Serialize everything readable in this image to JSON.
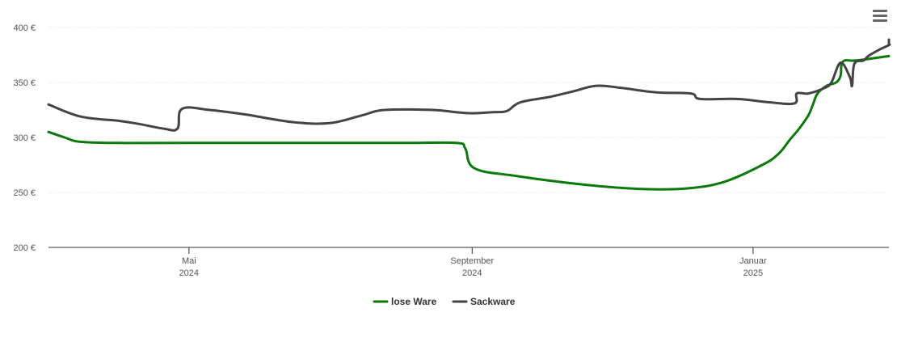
{
  "menu": {
    "icon": "hamburger-menu-icon"
  },
  "chart_data": {
    "type": "line",
    "title": "",
    "xlabel": "",
    "ylabel": "",
    "ylim": [
      200,
      400
    ],
    "y_ticks": [
      {
        "value": 400,
        "label": "400 €"
      },
      {
        "value": 350,
        "label": "350 €"
      },
      {
        "value": 300,
        "label": "300 €"
      },
      {
        "value": 250,
        "label": "250 €"
      },
      {
        "value": 200,
        "label": "200 €"
      }
    ],
    "xlim": [
      "2024-03-01",
      "2025-03-01"
    ],
    "x_ticks": [
      {
        "date": "2024-05-01",
        "label": "Mai",
        "year": "2024"
      },
      {
        "date": "2024-09-01",
        "label": "September",
        "year": "2024"
      },
      {
        "date": "2025-01-01",
        "label": "Januar",
        "year": "2025"
      }
    ],
    "grid": true,
    "legend_position": "bottom-center",
    "series": [
      {
        "name": "lose Ware",
        "color": "#0a7a0a",
        "points": [
          [
            "2024-03-01",
            305
          ],
          [
            "2024-03-08",
            300
          ],
          [
            "2024-03-15",
            296
          ],
          [
            "2024-04-01",
            295
          ],
          [
            "2024-05-01",
            295
          ],
          [
            "2024-06-15",
            295
          ],
          [
            "2024-08-01",
            295
          ],
          [
            "2024-08-25",
            295
          ],
          [
            "2024-08-29",
            290
          ],
          [
            "2024-09-02",
            272
          ],
          [
            "2024-09-20",
            265
          ],
          [
            "2024-10-20",
            257
          ],
          [
            "2024-11-15",
            253
          ],
          [
            "2024-12-05",
            254
          ],
          [
            "2024-12-20",
            260
          ],
          [
            "2025-01-05",
            275
          ],
          [
            "2025-01-12",
            285
          ],
          [
            "2025-01-17",
            298
          ],
          [
            "2025-01-21",
            308
          ],
          [
            "2025-01-25",
            320
          ],
          [
            "2025-01-27",
            330
          ],
          [
            "2025-01-29",
            340
          ],
          [
            "2025-02-02",
            347
          ],
          [
            "2025-02-06",
            350
          ],
          [
            "2025-02-08",
            356
          ],
          [
            "2025-02-09",
            369
          ],
          [
            "2025-02-15",
            370
          ],
          [
            "2025-03-01",
            374
          ]
        ]
      },
      {
        "name": "Sackware",
        "color": "#444444",
        "points": [
          [
            "2024-03-01",
            330
          ],
          [
            "2024-03-15",
            319
          ],
          [
            "2024-04-01",
            315
          ],
          [
            "2024-04-10",
            312
          ],
          [
            "2024-04-20",
            308
          ],
          [
            "2024-04-26",
            308
          ],
          [
            "2024-04-28",
            326
          ],
          [
            "2024-05-10",
            325
          ],
          [
            "2024-05-25",
            321
          ],
          [
            "2024-06-15",
            314
          ],
          [
            "2024-07-01",
            313
          ],
          [
            "2024-07-15",
            320
          ],
          [
            "2024-07-25",
            325
          ],
          [
            "2024-08-15",
            325
          ],
          [
            "2024-08-25",
            323
          ],
          [
            "2024-09-01",
            322
          ],
          [
            "2024-09-10",
            323
          ],
          [
            "2024-09-16",
            324
          ],
          [
            "2024-09-22",
            332
          ],
          [
            "2024-10-05",
            337
          ],
          [
            "2024-10-15",
            342
          ],
          [
            "2024-10-25",
            347
          ],
          [
            "2024-11-05",
            345
          ],
          [
            "2024-11-20",
            341
          ],
          [
            "2024-12-05",
            340
          ],
          [
            "2024-12-09",
            335
          ],
          [
            "2024-12-25",
            335
          ],
          [
            "2025-01-08",
            332
          ],
          [
            "2025-01-19",
            331
          ],
          [
            "2025-01-20",
            340
          ],
          [
            "2025-01-25",
            340
          ],
          [
            "2025-02-01",
            345
          ],
          [
            "2025-02-04",
            350
          ],
          [
            "2025-02-08",
            368
          ],
          [
            "2025-02-12",
            355
          ],
          [
            "2025-02-13",
            347
          ],
          [
            "2025-02-14",
            367
          ],
          [
            "2025-02-18",
            370
          ],
          [
            "2025-02-20",
            374
          ],
          [
            "2025-02-25",
            380
          ],
          [
            "2025-03-01",
            384
          ],
          [
            "2025-03-04",
            385
          ],
          [
            "2025-03-06",
            389
          ]
        ]
      }
    ]
  }
}
